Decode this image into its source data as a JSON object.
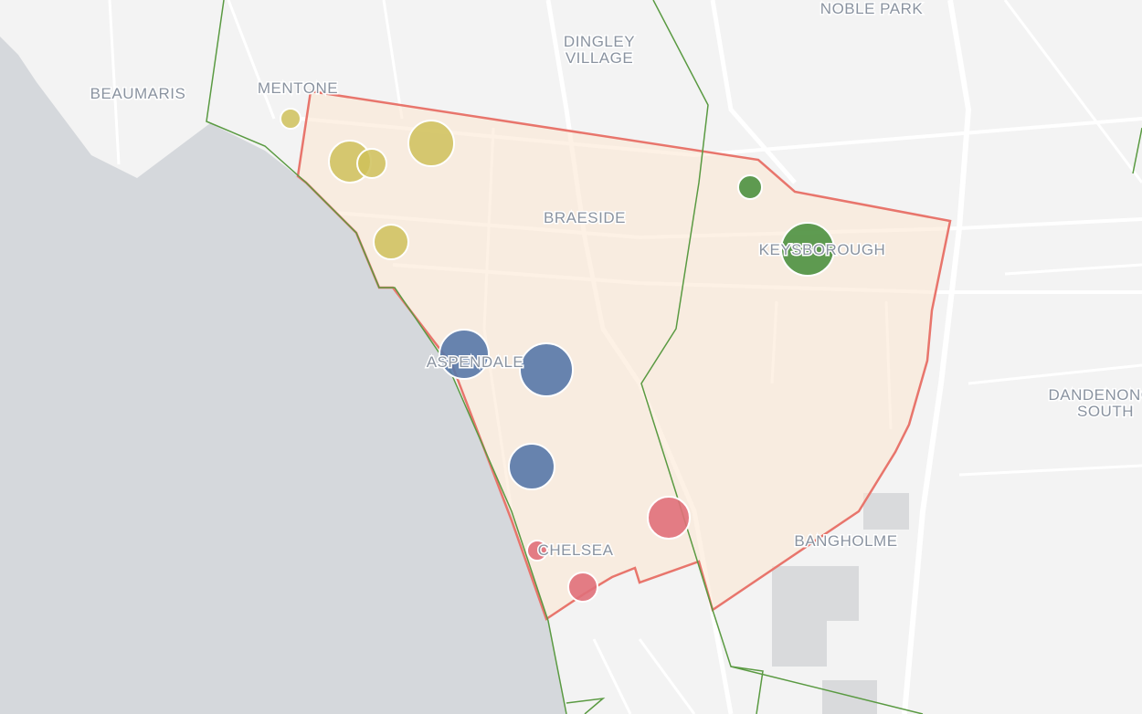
{
  "labels": {
    "noble_park": "NOBLE PARK",
    "dingley_village": [
      "DINGLEY",
      "VILLAGE"
    ],
    "beaumaris": "BEAUMARIS",
    "mentone": "MENTONE",
    "braeside": "BRAESIDE",
    "keysborough": "KEYSBOROUGH",
    "aspendale": "ASPENDALE",
    "dandenong_south": [
      "DANDENONG",
      "SOUTH"
    ],
    "chelsea": "CHELSEA",
    "bangholme": "BANGHOLME"
  }
}
